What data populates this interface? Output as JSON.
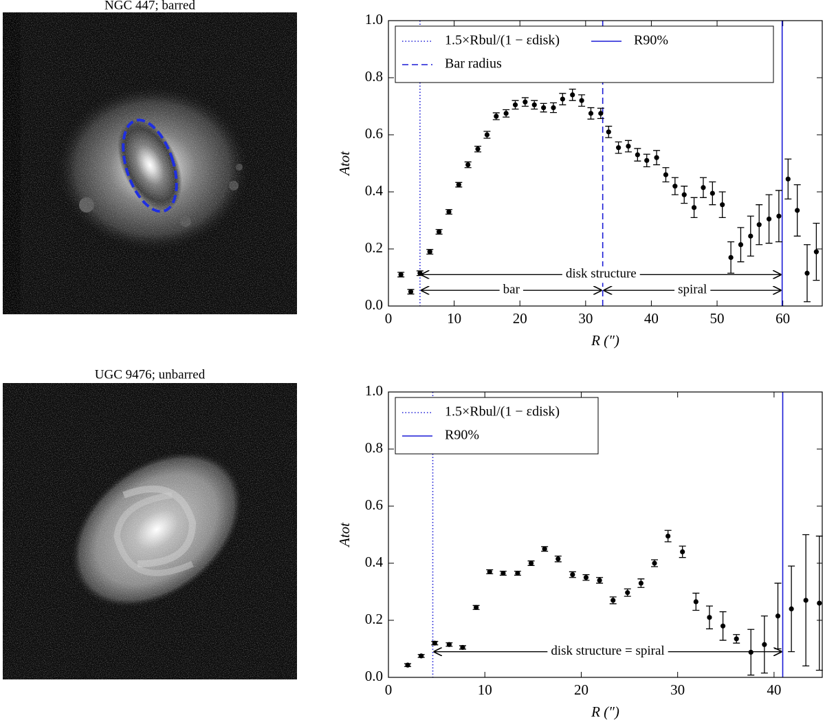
{
  "images": [
    {
      "title": "NGC 447; barred"
    },
    {
      "title": "UGC 9476; unbarred"
    }
  ],
  "chart_data": [
    {
      "type": "scatter",
      "xlabel": "R (″)",
      "ylabel": "Atot",
      "color": "#000000",
      "xlim": [
        0,
        66
      ],
      "xticks": [
        0,
        10,
        20,
        30,
        40,
        50,
        60
      ],
      "ylim": [
        0,
        1
      ],
      "yticks": [
        {
          "value": 0,
          "label": "0.0"
        },
        0.2,
        0.4,
        0.6,
        0.8,
        {
          "value": 1,
          "label": "1.0"
        }
      ],
      "x": [
        1.9,
        3.4,
        4.8,
        6.3,
        7.7,
        9.2,
        10.7,
        12.1,
        13.6,
        15.0,
        16.4,
        17.9,
        19.3,
        20.8,
        22.2,
        23.6,
        25.1,
        26.5,
        28.0,
        29.4,
        30.8,
        32.3,
        33.5,
        35.0,
        36.5,
        37.9,
        39.3,
        40.8,
        42.2,
        43.6,
        45.0,
        46.5,
        47.9,
        49.3,
        50.8,
        52.1,
        53.6,
        55.1,
        56.4,
        57.9,
        59.4,
        60.8,
        62.2,
        63.7,
        65.1
      ],
      "values": [
        0.11,
        0.05,
        0.115,
        0.19,
        0.26,
        0.33,
        0.425,
        0.495,
        0.55,
        0.6,
        0.665,
        0.675,
        0.705,
        0.715,
        0.705,
        0.695,
        0.695,
        0.725,
        0.74,
        0.72,
        0.675,
        0.675,
        0.61,
        0.555,
        0.56,
        0.53,
        0.51,
        0.52,
        0.46,
        0.42,
        0.39,
        0.345,
        0.415,
        0.395,
        0.355,
        0.17,
        0.215,
        0.245,
        0.285,
        0.305,
        0.315,
        0.445,
        0.335,
        0.115,
        0.19
      ],
      "errors": [
        0.008,
        0.008,
        0.008,
        0.008,
        0.008,
        0.008,
        0.008,
        0.01,
        0.01,
        0.012,
        0.012,
        0.013,
        0.015,
        0.015,
        0.015,
        0.015,
        0.017,
        0.02,
        0.02,
        0.02,
        0.02,
        0.018,
        0.02,
        0.02,
        0.02,
        0.022,
        0.022,
        0.025,
        0.025,
        0.03,
        0.03,
        0.035,
        0.035,
        0.04,
        0.045,
        0.055,
        0.06,
        0.07,
        0.07,
        0.085,
        0.09,
        0.07,
        0.09,
        0.1,
        0.1
      ],
      "vlines": [
        {
          "name": "1.5×Rbul/(1 − εdisk)",
          "x": 4.8,
          "style": "dotted",
          "color": "#1a1ad6"
        },
        {
          "name": "Bar radius",
          "x": 32.6,
          "style": "dashed",
          "color": "#1a1ad6"
        },
        {
          "name": "R90%",
          "x": 59.9,
          "style": "solid",
          "color": "#1a1ad6"
        }
      ],
      "legend_columns": 2,
      "annotations": [
        {
          "text": "disk structure",
          "from": 4.8,
          "to": 59.9,
          "y": 0.11
        },
        {
          "text": "bar",
          "from": 4.8,
          "to": 32.6,
          "y": 0.055
        },
        {
          "text": "spiral",
          "from": 32.6,
          "to": 59.9,
          "y": 0.055
        }
      ]
    },
    {
      "type": "scatter",
      "xlabel": "R (″)",
      "ylabel": "Atot",
      "color": "#000000",
      "xlim": [
        0,
        45
      ],
      "xticks": [
        0,
        10,
        20,
        30,
        40
      ],
      "ylim": [
        0,
        1
      ],
      "yticks": [
        {
          "value": 0,
          "label": "0.0"
        },
        0.2,
        0.4,
        0.6,
        0.8,
        {
          "value": 1,
          "label": "1.0"
        }
      ],
      "x": [
        2.0,
        3.4,
        4.8,
        6.3,
        7.7,
        9.1,
        10.5,
        11.9,
        13.4,
        14.8,
        16.2,
        17.6,
        19.1,
        20.5,
        21.9,
        23.3,
        24.8,
        26.2,
        27.6,
        29.0,
        30.5,
        31.9,
        33.3,
        34.7,
        36.1,
        37.6,
        39.0,
        40.4,
        41.8,
        43.3,
        44.7
      ],
      "values": [
        0.043,
        0.075,
        0.12,
        0.115,
        0.105,
        0.245,
        0.37,
        0.365,
        0.365,
        0.4,
        0.45,
        0.415,
        0.36,
        0.35,
        0.34,
        0.27,
        0.297,
        0.33,
        0.4,
        0.495,
        0.44,
        0.265,
        0.21,
        0.18,
        0.135,
        0.088,
        0.115,
        0.215,
        0.24,
        0.27,
        0.26
      ],
      "errors": [
        0.005,
        0.005,
        0.006,
        0.006,
        0.006,
        0.007,
        0.007,
        0.007,
        0.007,
        0.008,
        0.008,
        0.01,
        0.01,
        0.01,
        0.01,
        0.012,
        0.013,
        0.015,
        0.012,
        0.02,
        0.02,
        0.03,
        0.04,
        0.05,
        0.015,
        0.08,
        0.1,
        0.115,
        0.15,
        0.23,
        0.235
      ],
      "vlines": [
        {
          "name": "1.5×Rbul/(1 − εdisk)",
          "x": 4.6,
          "style": "dotted",
          "color": "#1a1ad6"
        },
        {
          "name": "R90%",
          "x": 40.9,
          "style": "solid",
          "color": "#1a1ad6"
        }
      ],
      "legend_columns": 1,
      "annotations": [
        {
          "text": "disk structure = spiral",
          "from": 4.6,
          "to": 40.9,
          "y": 0.09
        }
      ]
    }
  ]
}
